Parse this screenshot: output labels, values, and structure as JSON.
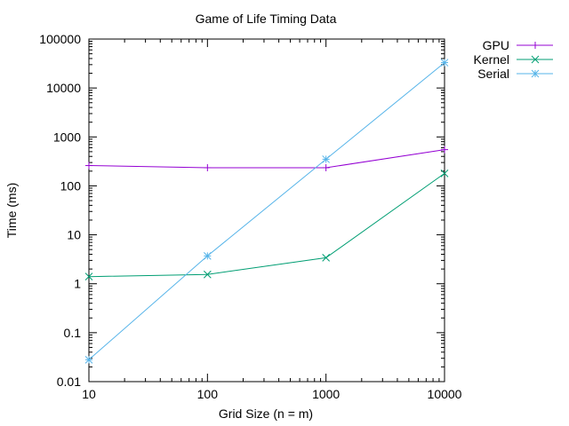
{
  "chart_data": {
    "type": "line",
    "title": "Game of Life Timing Data",
    "xlabel": "Grid Size (n = m)",
    "ylabel": "Time (ms)",
    "xscale": "log",
    "yscale": "log",
    "xlim": [
      10,
      10000
    ],
    "ylim": [
      0.01,
      100000
    ],
    "x_ticks": [
      10,
      100,
      1000,
      10000
    ],
    "x_tick_labels": [
      "10",
      "100",
      "1000",
      "10000"
    ],
    "y_ticks": [
      0.01,
      0.1,
      1,
      10,
      100,
      1000,
      10000,
      100000
    ],
    "y_tick_labels": [
      "0.01",
      "0.1",
      "1",
      "10",
      "100",
      "1000",
      "10000",
      "100000"
    ],
    "grid": false,
    "legend_position": "top-right, outside plot",
    "x": [
      10,
      100,
      1000,
      10000
    ],
    "series": [
      {
        "name": "GPU",
        "values": [
          260,
          235,
          235,
          550
        ],
        "color": "#9400d3",
        "marker": "plus"
      },
      {
        "name": "Kernel",
        "values": [
          1.4,
          1.55,
          3.4,
          180
        ],
        "color": "#009e73",
        "marker": "cross"
      },
      {
        "name": "Serial",
        "values": [
          0.028,
          3.7,
          350,
          33000
        ],
        "color": "#56b4e9",
        "marker": "star"
      }
    ]
  }
}
